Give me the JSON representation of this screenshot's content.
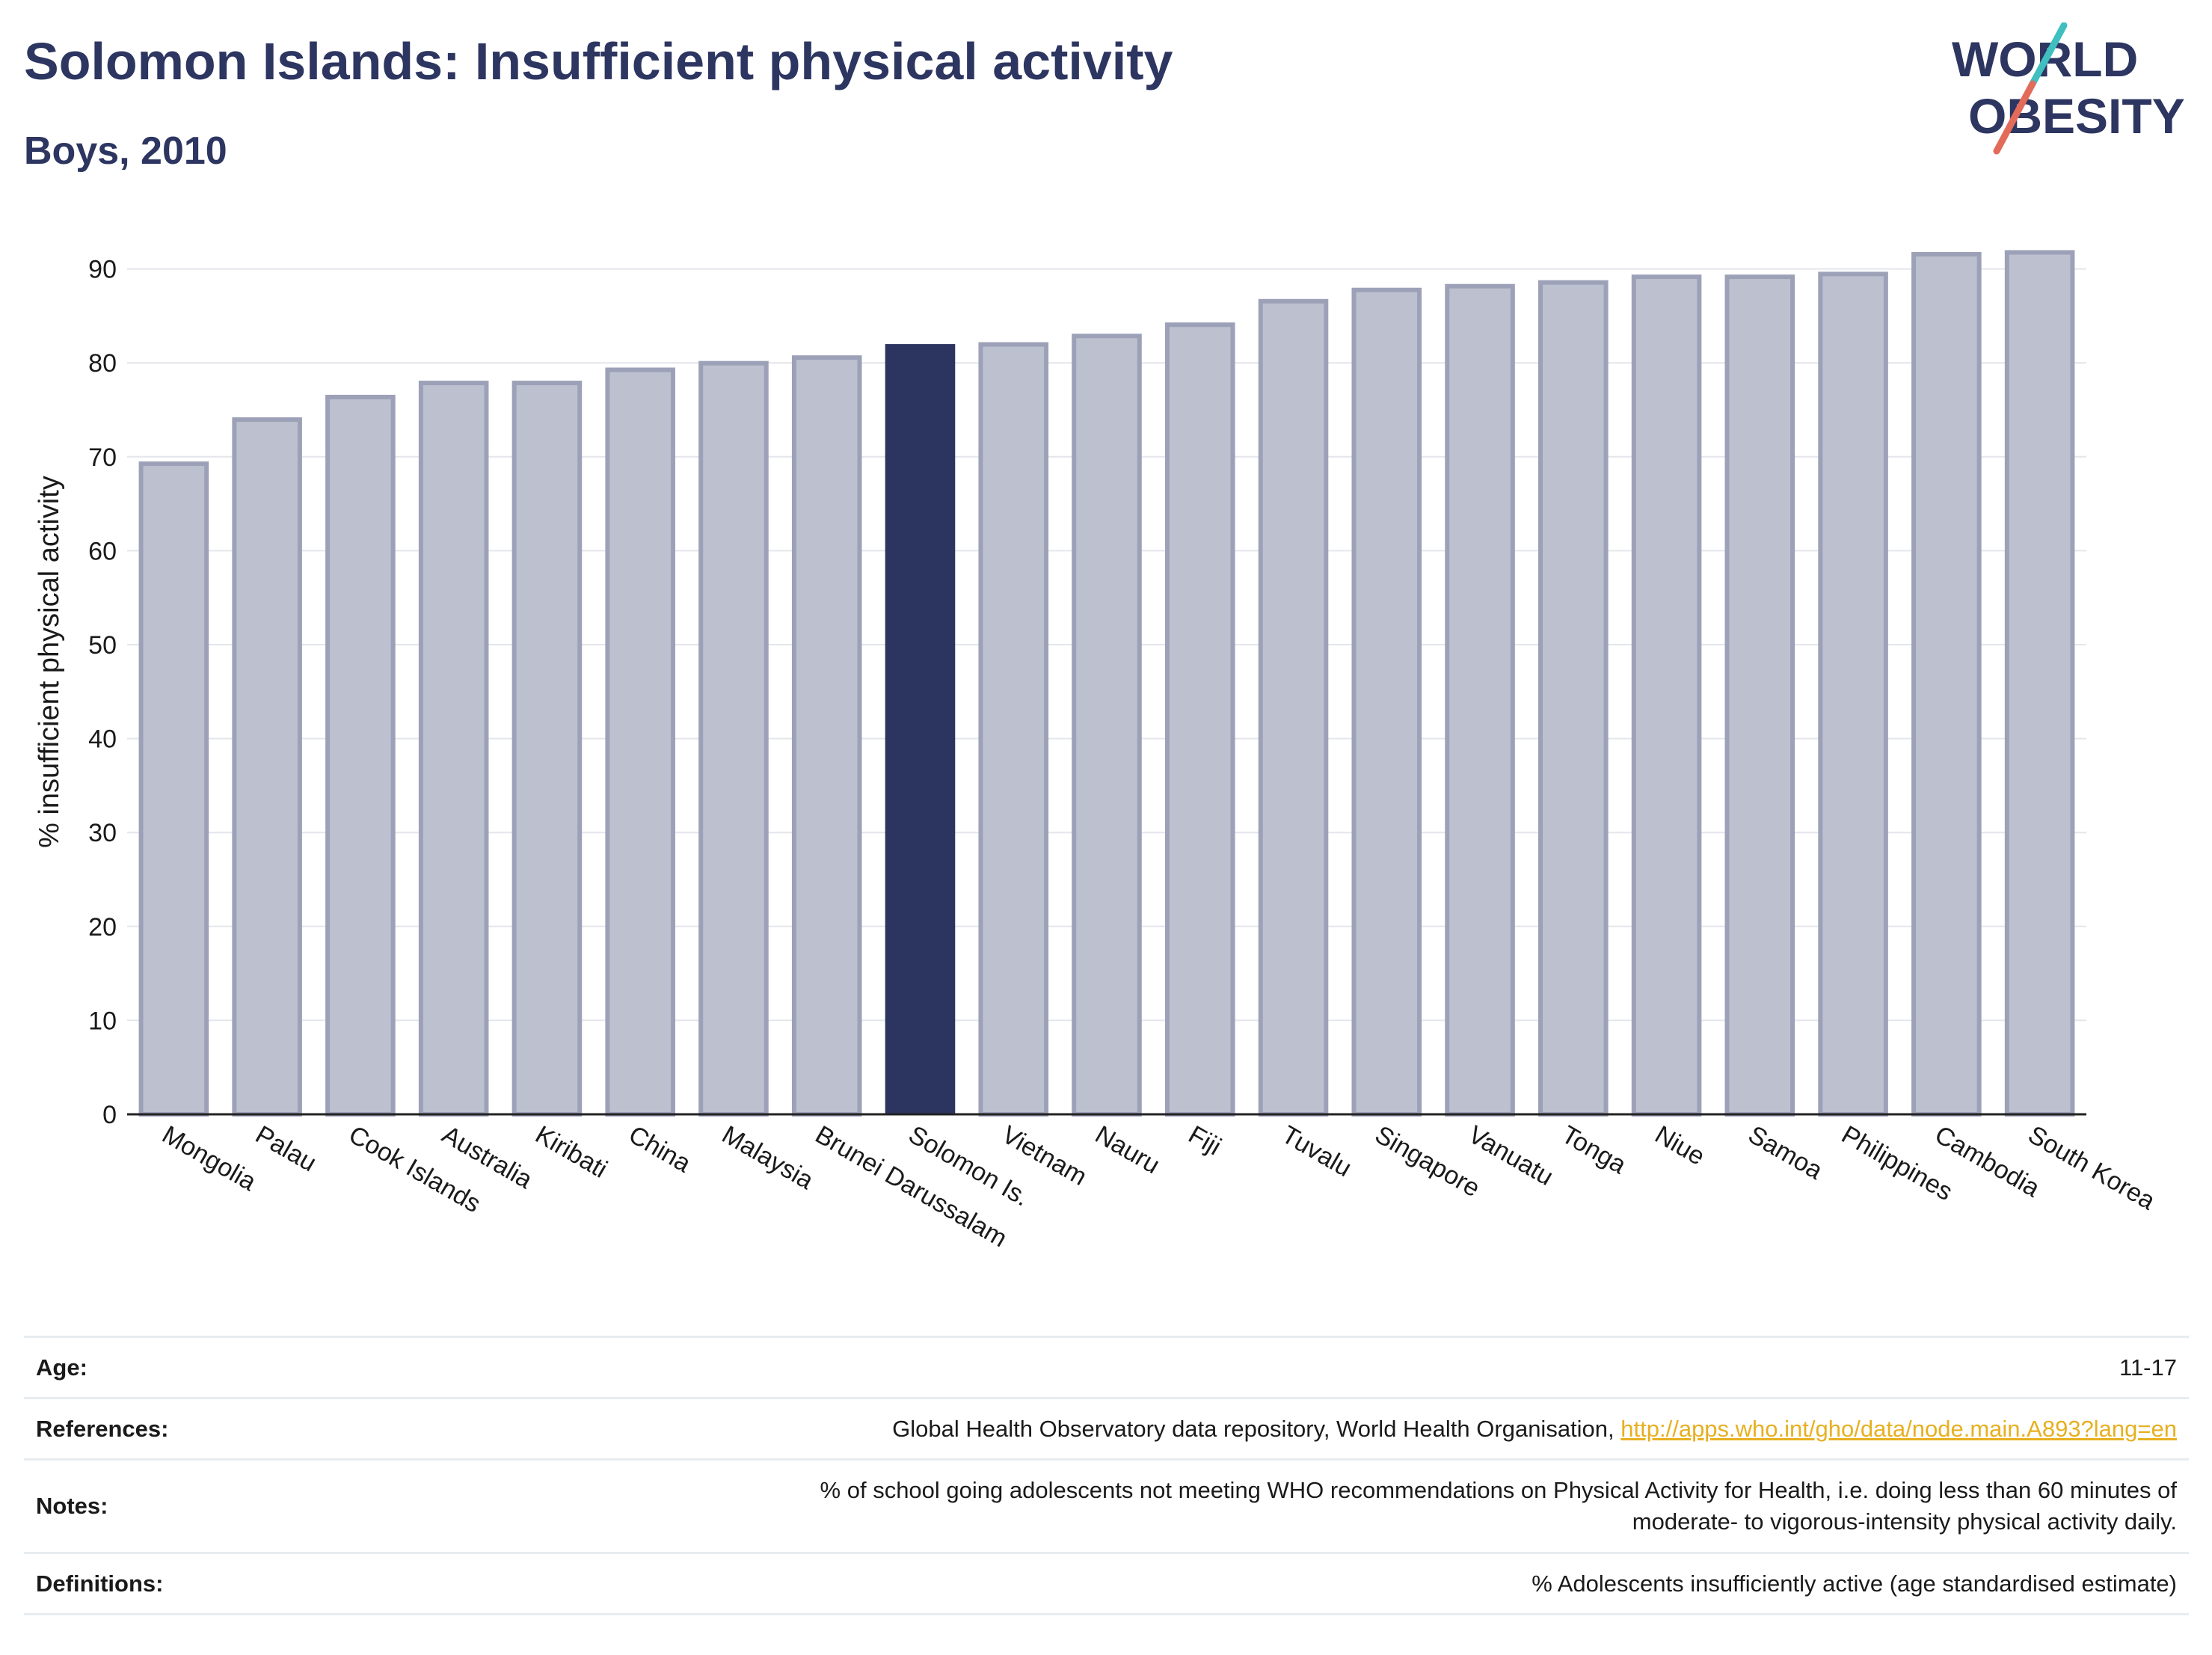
{
  "header": {
    "title": "Solomon Islands: Insufficient physical activity",
    "subtitle": "Boys, 2010"
  },
  "logo": {
    "line1": "WORLD",
    "line2": "OBESITY"
  },
  "colors": {
    "highlight": "#2b3560",
    "bar_fill": "#bcc0cf",
    "bar_stroke": "#9da1b8",
    "title": "#2d3561",
    "link": "#e6b020",
    "logo_teal": "#3fbfbf",
    "logo_coral": "#e26b5a"
  },
  "chart_data": {
    "type": "bar",
    "categories": [
      "Mongolia",
      "Palau",
      "Cook Islands",
      "Australia",
      "Kiribati",
      "China",
      "Malaysia",
      "Brunei Darussalam",
      "Solomon Is.",
      "Vietnam",
      "Nauru",
      "Fiji",
      "Tuvalu",
      "Singapore",
      "Vanuatu",
      "Tonga",
      "Niue",
      "Samoa",
      "Philippines",
      "Cambodia",
      "South Korea"
    ],
    "values": [
      69.5,
      74.2,
      76.6,
      78.1,
      78.1,
      79.5,
      80.2,
      80.8,
      82.0,
      82.2,
      83.1,
      84.3,
      86.8,
      88.0,
      88.4,
      88.8,
      89.4,
      89.4,
      89.7,
      91.8,
      92.0
    ],
    "highlight": "Solomon Is.",
    "ylabel": "% insufficient physical activity",
    "xlabel": "",
    "ylim": [
      0,
      93
    ],
    "yticks": [
      0,
      10,
      20,
      30,
      40,
      50,
      60,
      70,
      80,
      90
    ],
    "grid": true,
    "legend": "none"
  },
  "info": {
    "age_label": "Age:",
    "age_value": "11-17",
    "references_label": "References:",
    "references_text": "Global Health Observatory data repository, World Health Organisation,",
    "references_link": "http://apps.who.int/gho/data/node.main.A893?lang=en",
    "notes_label": "Notes:",
    "notes_line1": "% of school going adolescents not meeting WHO recommendations on Physical Activity for Health, i.e. doing less than 60 minutes of",
    "notes_line2": "moderate- to vigorous-intensity physical activity daily.",
    "definitions_label": "Definitions:",
    "definitions_text": "% Adolescents insufficiently active (age standardised estimate)"
  }
}
